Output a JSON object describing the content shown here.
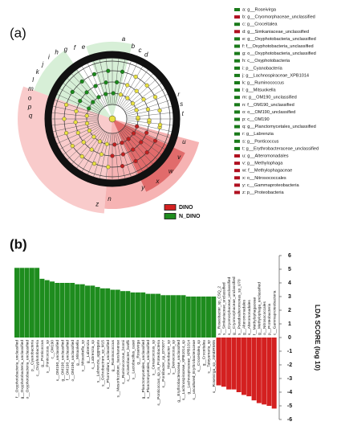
{
  "panel_labels": [
    "(a)",
    "(b)"
  ],
  "cladogram": {
    "letters": [
      "a",
      "b",
      "c",
      "d",
      "e",
      "f",
      "g",
      "h",
      "i",
      "j",
      "k",
      "l",
      "m",
      "n",
      "o",
      "p",
      "q",
      "r",
      "s",
      "t",
      "u",
      "v",
      "w",
      "x",
      "y",
      "z"
    ],
    "legend": [
      {
        "text": "a: g__Roseivirga",
        "color": "#1a7a1a"
      },
      {
        "text": "b: g__Cryomorphaceae_unclassified",
        "color": "#b01020"
      },
      {
        "text": "c: g__Croceitalea",
        "color": "#1a7a1a"
      },
      {
        "text": "d: g__Simkaniaceae_unclassified",
        "color": "#b01020"
      },
      {
        "text": "e: g__Oxyphotobacteria_unclassified",
        "color": "#1a7a1a"
      },
      {
        "text": "f: f__Oxyphotobacteria_unclassified",
        "color": "#1a7a1a"
      },
      {
        "text": "g: o__Oxyphotobacteria_unclassified",
        "color": "#1a7a1a"
      },
      {
        "text": "h: c__Oxyphotobacteria",
        "color": "#1a7a1a"
      },
      {
        "text": "i: p__Cyanobacteria",
        "color": "#1a7a1a"
      },
      {
        "text": "j: g__Lachnospiraceae_XPB1014",
        "color": "#1a7a1a"
      },
      {
        "text": "k: g__Ruminococcus",
        "color": "#1a7a1a"
      },
      {
        "text": "l: g__Mitsuokella",
        "color": "#1a7a1a"
      },
      {
        "text": "m: g__OM190_unclassified",
        "color": "#1a7a1a"
      },
      {
        "text": "n: f__OM190_unclassified",
        "color": "#1a7a1a"
      },
      {
        "text": "o: o__OM190_unclassified",
        "color": "#1a7a1a"
      },
      {
        "text": "p: c__OM190",
        "color": "#1a7a1a"
      },
      {
        "text": "q: g__Planctomycetales_unclassified",
        "color": "#1a7a1a"
      },
      {
        "text": "r: g__Labrenzia",
        "color": "#1a7a1a"
      },
      {
        "text": "s: g__Ponticoccus",
        "color": "#1a7a1a"
      },
      {
        "text": "t: g__Erythrobacteraceae_unclassified",
        "color": "#1a7a1a"
      },
      {
        "text": "u: g__Alteromonadales",
        "color": "#b01020"
      },
      {
        "text": "v: g__Methylophaga",
        "color": "#b01020"
      },
      {
        "text": "w: f__Methylophagaceae",
        "color": "#b01020"
      },
      {
        "text": "x: o__Nitrosococcales",
        "color": "#b01020"
      },
      {
        "text": "y: c__Gammaproteobacteria",
        "color": "#b01020"
      },
      {
        "text": "z: p__Proteobacteria",
        "color": "#b01020"
      }
    ]
  },
  "chart_data": {
    "type": "bar",
    "ylabel": "LDA SCORE (log 10)",
    "categories": [
      "f__Oxyphotobacteria_unclassified",
      "g__Oxyphotobacteria_unclassified",
      "o__Oxyphotobacteria_unclassified",
      "p__Cyanobacteria",
      "c__Oxyphotobacteria",
      "g__Ponticoccus",
      "s__Ponticoccus_sp",
      "c__OM190",
      "s__OM190_unclassified",
      "g__OM190_unclassified",
      "f__OM190_unclassified",
      "o__OM190_unclassified",
      "g__Mitsuokella",
      "s__Mitsuokella_sp",
      "g__Labrenzia",
      "s__Labrenzia_sp",
      "s__Labrenzia_aggregata",
      "s__Ochrobactrum_sp_M15",
      "s__Phormidium_unclassified",
      "g__Ruminococcus",
      "s__Mesorhizobium_tianshanense",
      "s__Ruminococcus_bromii",
      "s__Acinetobacter_lwoffii",
      "s__Lactobacillus_casei",
      "g__Roseivirga",
      "g__Planctomycetales_unclassified",
      "s__Planctomycetales_unclassified",
      "s__Cerasicoccus_sp",
      "s__Ponticoccus_sp_in_Proteobacteria",
      "s__Pontibacter_sp_DT0077",
      "s__Marinobacter_sp",
      "s__Deinococcus_sp",
      "g__Erythrobacteraceae_unclassified",
      "s__Lachnospiraceae_XPB1014_sp",
      "g__Lachnospiraceae_XPB1014",
      "s__uncultured_Erythrobacteraceae",
      "s__Croceitalea_sp",
      "g__Croceitalea",
      "s__Tateyamaria_sp",
      "s__Roseivirga_sp_JSNDRM05",
      "s__Roseobacter_sp_CSQ_2",
      "s__Simkaniaceae_unclassified",
      "s__Cryomorphaceae_unclassified",
      "g__Cryomorphaceae_unclassified",
      "s__Pseudoalteromonas_sp_U70",
      "g__Alteromonadales",
      "s__Alteromonadales",
      "f__Methylophagaceae",
      "g__Methylophaga_unclassified",
      "o__Nitrosococcales",
      "p__Proteobacteria",
      "c__Gammaproteobacteria"
    ],
    "series": [
      {
        "name": "DINO",
        "color": "#d42020",
        "values": [
          null,
          null,
          null,
          null,
          null,
          null,
          null,
          null,
          null,
          null,
          null,
          null,
          null,
          null,
          null,
          null,
          null,
          null,
          null,
          null,
          null,
          null,
          null,
          null,
          null,
          null,
          null,
          null,
          null,
          null,
          null,
          null,
          null,
          null,
          null,
          null,
          null,
          null,
          null,
          null,
          -3.5,
          -3.6,
          -3.8,
          -3.8,
          -4.0,
          -4.2,
          -4.3,
          -4.6,
          -4.8,
          -4.9,
          -5.0,
          -5.2
        ]
      },
      {
        "name": "N_DINO",
        "color": "#1e8c1e",
        "values": [
          5.1,
          5.1,
          5.1,
          5.1,
          5.1,
          4.3,
          4.2,
          4.1,
          4.0,
          4.0,
          4.0,
          4.0,
          3.9,
          3.9,
          3.8,
          3.8,
          3.7,
          3.6,
          3.6,
          3.5,
          3.5,
          3.4,
          3.4,
          3.3,
          3.3,
          3.3,
          3.2,
          3.2,
          3.2,
          3.1,
          3.1,
          3.1,
          3.1,
          3.1,
          3.0,
          3.0,
          3.0,
          3.0,
          3.0,
          3.0,
          null,
          null,
          null,
          null,
          null,
          null,
          null,
          null,
          null,
          null,
          null,
          null
        ]
      }
    ],
    "ylim": [
      -6,
      6
    ],
    "yticks": [
      -6,
      -5,
      -4,
      -3,
      -2,
      -1,
      0,
      1,
      2,
      3,
      4,
      5,
      6
    ]
  }
}
